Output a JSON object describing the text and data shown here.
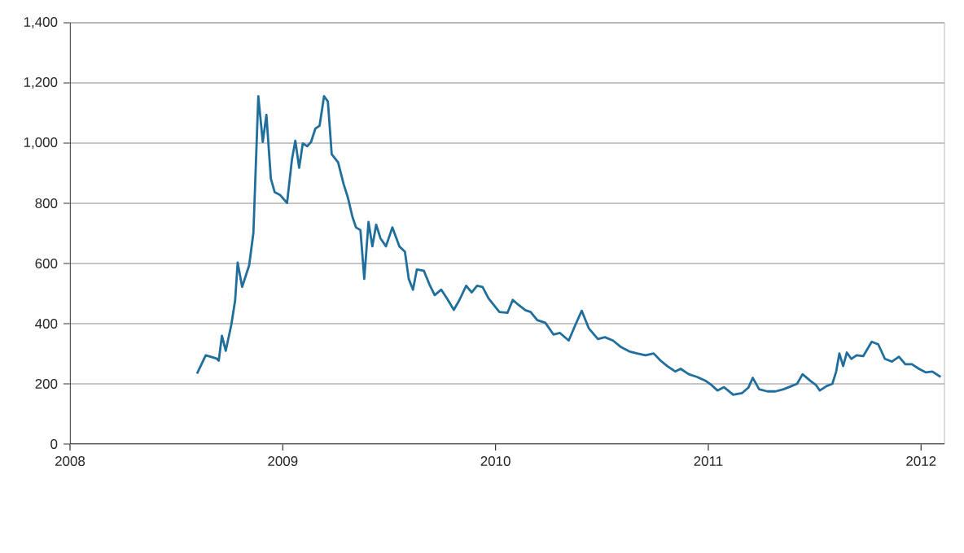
{
  "chart_data": {
    "type": "line",
    "color": "#1f6e9c",
    "grid": "y",
    "line_style": "solid",
    "xlim": [
      2008,
      2012.11
    ],
    "xticks": [
      2008,
      2009,
      2010,
      2011,
      2012
    ],
    "ylim": [
      0,
      1400
    ],
    "yticks": [
      0,
      200,
      400,
      600,
      800,
      {
        "value": 1000,
        "label": "1,000"
      },
      {
        "value": 1200,
        "label": "1,200"
      },
      {
        "value": 1400,
        "label": "1,400"
      }
    ],
    "x": [
      2008.597,
      2008.638,
      2008.689,
      2008.699,
      2008.714,
      2008.732,
      2008.758,
      2008.776,
      2008.788,
      2008.809,
      2008.842,
      2008.862,
      2008.885,
      2008.906,
      2008.923,
      2008.944,
      2008.962,
      2008.987,
      2009.02,
      2009.043,
      2009.059,
      2009.077,
      2009.094,
      2009.115,
      2009.133,
      2009.153,
      2009.173,
      2009.194,
      2009.212,
      2009.23,
      2009.26,
      2009.286,
      2009.306,
      2009.327,
      2009.344,
      2009.365,
      2009.383,
      2009.403,
      2009.421,
      2009.439,
      2009.459,
      2009.485,
      2009.515,
      2009.548,
      2009.574,
      2009.592,
      2009.612,
      2009.63,
      2009.663,
      2009.689,
      2009.714,
      2009.745,
      2009.77,
      2009.804,
      2009.829,
      2009.862,
      2009.888,
      2009.913,
      2009.939,
      2009.967,
      2010.018,
      2010.056,
      2010.081,
      2010.107,
      2010.14,
      2010.165,
      2010.196,
      2010.234,
      2010.272,
      2010.303,
      2010.344,
      2010.374,
      2010.405,
      2010.438,
      2010.481,
      2010.514,
      2010.552,
      2010.59,
      2010.628,
      2010.666,
      2010.705,
      2010.743,
      2010.776,
      2010.807,
      2010.845,
      2010.87,
      2010.908,
      2010.947,
      2010.985,
      2011.015,
      2011.043,
      2011.074,
      2011.117,
      2011.158,
      2011.188,
      2011.209,
      2011.239,
      2011.277,
      2011.316,
      2011.354,
      2011.392,
      2011.417,
      2011.443,
      2011.481,
      2011.506,
      2011.524,
      2011.557,
      2011.583,
      2011.601,
      2011.616,
      2011.634,
      2011.651,
      2011.672,
      2011.697,
      2011.728,
      2011.768,
      2011.799,
      2011.83,
      2011.863,
      2011.896,
      2011.926,
      2011.957,
      2011.99,
      2012.023,
      2012.053,
      2012.092
    ],
    "values": [
      234,
      295,
      284,
      277,
      360,
      310,
      396,
      477,
      603,
      522,
      594,
      702,
      1156,
      1004,
      1094,
      882,
      837,
      828,
      801,
      945,
      1008,
      918,
      999,
      990,
      1004,
      1048,
      1058,
      1156,
      1138,
      963,
      936,
      864,
      819,
      756,
      720,
      711,
      549,
      738,
      657,
      729,
      684,
      657,
      720,
      657,
      639,
      549,
      513,
      580,
      576,
      531,
      495,
      513,
      486,
      446,
      477,
      526,
      504,
      526,
      522,
      484,
      439,
      436,
      479,
      463,
      445,
      439,
      412,
      403,
      364,
      369,
      344,
      394,
      443,
      385,
      349,
      355,
      344,
      322,
      308,
      301,
      295,
      301,
      277,
      259,
      241,
      250,
      232,
      223,
      211,
      196,
      178,
      189,
      164,
      169,
      187,
      220,
      182,
      175,
      175,
      182,
      193,
      200,
      232,
      209,
      196,
      178,
      193,
      200,
      241,
      301,
      259,
      304,
      283,
      295,
      292,
      340,
      331,
      283,
      274,
      290,
      265,
      265,
      250,
      238,
      241,
      223
    ]
  }
}
